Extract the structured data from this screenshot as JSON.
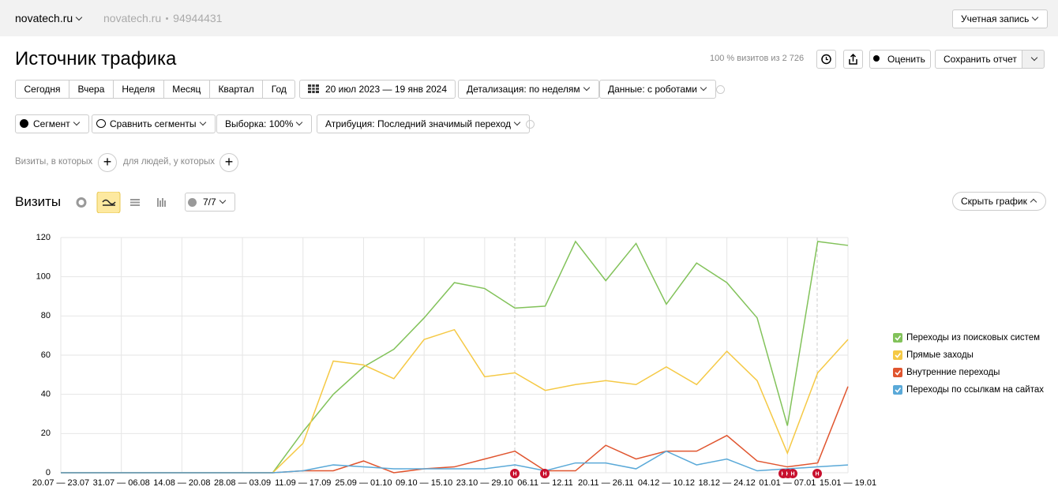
{
  "header": {
    "site": "novatech.ru",
    "breadcrumb_site": "novatech.ru",
    "counter_id": "94944431",
    "account": "Учетная запись"
  },
  "title": "Источник трафика",
  "summary": "100 % визитов из 2 726",
  "buttons": {
    "rate": "Оценить",
    "save": "Сохранить отчет"
  },
  "periods": [
    "Сегодня",
    "Вчера",
    "Неделя",
    "Месяц",
    "Квартал",
    "Год"
  ],
  "date_range": "20 июл 2023 — 19 янв 2024",
  "detail": "Детализация: по неделям",
  "data_filter": "Данные: с роботами",
  "segment": "Сегмент",
  "compare": "Сравнить сегменты",
  "sample": "Выборка: 100%",
  "attribution": "Атрибуция: Последний значимый переход",
  "filters": [
    "Визиты, в которых",
    "для людей, у которых"
  ],
  "chart_header": {
    "title": "Визиты",
    "series_count": "7/7",
    "hide": "Скрыть график"
  },
  "chart_data": {
    "type": "line",
    "categories": [
      "20.07 — 23.07",
      null,
      "31.07 — 06.08",
      null,
      "14.08 — 20.08",
      null,
      "28.08 — 03.09",
      null,
      "11.09 — 17.09",
      null,
      "25.09 — 01.10",
      null,
      "09.10 — 15.10",
      null,
      "23.10 — 29.10",
      null,
      "06.11 — 12.11",
      null,
      "20.11 — 26.11",
      null,
      "04.12 — 10.12",
      null,
      "18.12 — 24.12",
      null,
      "01.01 — 07.01",
      null,
      "15.01 — 19.01"
    ],
    "series": [
      {
        "name": "Переходы из поисковых систем",
        "color": "#82c25a",
        "values": [
          0,
          0,
          0,
          0,
          0,
          0,
          0,
          0,
          21,
          40,
          54,
          63,
          79,
          97,
          94,
          84,
          85,
          118,
          98,
          117,
          86,
          107,
          97,
          79,
          24,
          118,
          116
        ]
      },
      {
        "name": "Прямые заходы",
        "color": "#f5c945",
        "values": [
          0,
          0,
          0,
          0,
          0,
          0,
          0,
          0,
          15,
          57,
          55,
          48,
          68,
          73,
          49,
          51,
          42,
          45,
          47,
          45,
          54,
          45,
          62,
          47,
          10,
          51,
          68
        ]
      },
      {
        "name": "Внутренние переходы",
        "color": "#e0552f",
        "values": [
          0,
          0,
          0,
          0,
          0,
          0,
          0,
          0,
          1,
          1,
          6,
          0,
          2,
          3,
          7,
          11,
          1,
          1,
          14,
          7,
          11,
          11,
          19,
          6,
          3,
          5,
          44
        ]
      },
      {
        "name": "Переходы по ссылкам на сайтах",
        "color": "#5aa9d8",
        "values": [
          0,
          0,
          0,
          0,
          0,
          0,
          0,
          0,
          1,
          4,
          3,
          2,
          2,
          2,
          2,
          4,
          1,
          5,
          5,
          2,
          11,
          4,
          7,
          1,
          2,
          3,
          4
        ]
      }
    ],
    "ylim": [
      0,
      120
    ],
    "yticks": [
      0,
      20,
      40,
      60,
      80,
      100,
      120
    ],
    "grid": true,
    "legend": "right",
    "annotation_label": "Н"
  }
}
